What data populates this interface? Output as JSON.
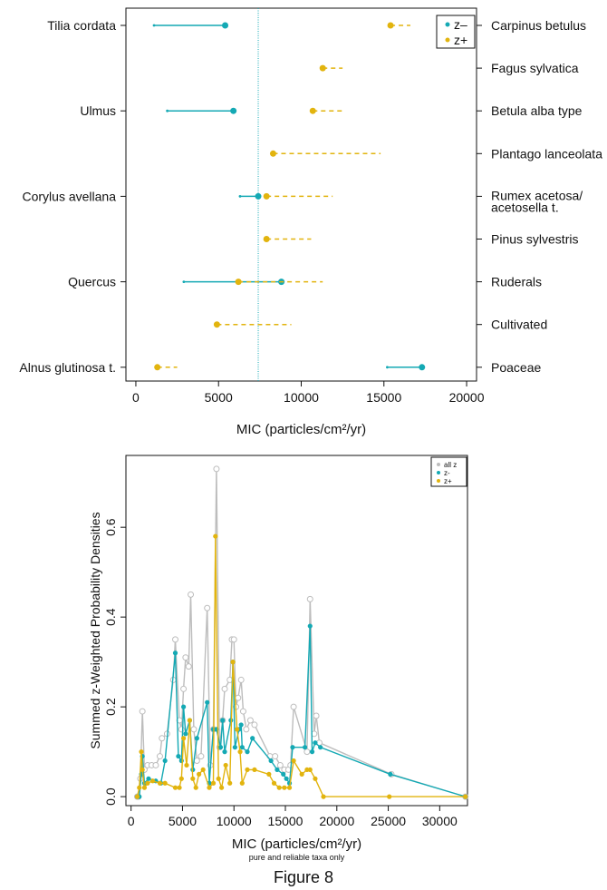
{
  "caption": "Figure 8",
  "colors": {
    "z_minus": "#14a9b4",
    "z_plus": "#e2b40e",
    "all_z": "#bdbdbd",
    "threshold": "#14a9b4"
  },
  "chart_data": [
    {
      "type": "scatter",
      "style": "dumbbell",
      "xlabel": "MIC (particles/cm²/yr)",
      "xlim": [
        -600,
        20600
      ],
      "xticks": [
        0,
        5000,
        10000,
        15000,
        20000
      ],
      "threshold_line": 7400,
      "legend": {
        "placement": "top-right",
        "entries": [
          "z–",
          "z+"
        ]
      },
      "left_labels": [
        "Tilia cordata",
        "Ulmus",
        "Corylus avellana",
        "Quercus",
        "Alnus glutinosa t."
      ],
      "right_labels": [
        "Carpinus betulus",
        "Fagus sylvatica",
        "Betula alba type",
        "Plantago lanceolata",
        "Rumex acetosa/\nacetosella t.",
        "Pinus sylvestris",
        "Ruderals",
        "Cultivated",
        "Poaceae"
      ],
      "taxa": [
        {
          "row": 1,
          "z_minus": {
            "value": 5400,
            "range": [
              1100,
              5400
            ]
          },
          "z_plus": {
            "value": 15400,
            "range": [
              15400,
              16600
            ]
          }
        },
        {
          "row": 2,
          "z_plus": {
            "value": 11300,
            "range": [
              11300,
              12500
            ]
          }
        },
        {
          "row": 3,
          "z_minus": {
            "value": 5900,
            "range": [
              1900,
              5900
            ]
          },
          "z_plus": {
            "value": 10700,
            "range": [
              10700,
              12500
            ]
          }
        },
        {
          "row": 4,
          "z_plus": {
            "value": 8300,
            "range": [
              8300,
              14800
            ]
          }
        },
        {
          "row": 5,
          "z_minus": {
            "value": 7400,
            "range": [
              6300,
              7400
            ]
          },
          "z_plus": {
            "value": 7900,
            "range": [
              7900,
              11900
            ]
          }
        },
        {
          "row": 6,
          "z_plus": {
            "value": 7900,
            "range": [
              7900,
              10600
            ]
          }
        },
        {
          "row": 7,
          "z_minus": {
            "value": 8800,
            "range": [
              2900,
              8800
            ]
          },
          "z_plus": {
            "value": 6200,
            "range": [
              6200,
              11300
            ]
          }
        },
        {
          "row": 8,
          "z_plus": {
            "value": 4900,
            "range": [
              4900,
              9400
            ]
          }
        },
        {
          "row": 9,
          "z_minus": {
            "value": 17300,
            "range": [
              15200,
              17300
            ]
          },
          "z_plus": {
            "value": 1300,
            "range": [
              1300,
              2500
            ]
          }
        }
      ]
    },
    {
      "type": "line",
      "xlabel": "MIC (particles/cm²/yr)",
      "subtitle": "pure and reliable taxa only",
      "ylabel": "Summed z-Weighted Probability Densities",
      "xlim": [
        -500,
        32700
      ],
      "ylim": [
        -0.02,
        0.76
      ],
      "xticks": [
        0,
        5000,
        10000,
        15000,
        20000,
        25000,
        30000
      ],
      "yticks": [
        0.0,
        0.2,
        0.4,
        0.6
      ],
      "legend": {
        "placement": "top-right",
        "entries": [
          "all z",
          "z-",
          "z+"
        ]
      },
      "series": [
        {
          "name": "all z",
          "color_key": "all_z",
          "points": [
            [
              600,
              0.0
            ],
            [
              700,
              0.0
            ],
            [
              900,
              0.04
            ],
            [
              1100,
              0.19
            ],
            [
              1300,
              0.06
            ],
            [
              1600,
              0.07
            ],
            [
              2000,
              0.07
            ],
            [
              2400,
              0.07
            ],
            [
              2800,
              0.09
            ],
            [
              3000,
              0.13
            ],
            [
              3500,
              0.14
            ],
            [
              4100,
              0.26
            ],
            [
              4300,
              0.35
            ],
            [
              4700,
              0.17
            ],
            [
              4900,
              0.15
            ],
            [
              5100,
              0.24
            ],
            [
              5300,
              0.31
            ],
            [
              5600,
              0.29
            ],
            [
              5800,
              0.45
            ],
            [
              6100,
              0.15
            ],
            [
              6400,
              0.08
            ],
            [
              6800,
              0.09
            ],
            [
              7400,
              0.42
            ],
            [
              7700,
              0.07
            ],
            [
              8000,
              0.15
            ],
            [
              8300,
              0.73
            ],
            [
              8600,
              0.11
            ],
            [
              8900,
              0.17
            ],
            [
              9100,
              0.24
            ],
            [
              9600,
              0.26
            ],
            [
              9800,
              0.35
            ],
            [
              10000,
              0.35
            ],
            [
              10200,
              0.2
            ],
            [
              10400,
              0.22
            ],
            [
              10700,
              0.26
            ],
            [
              10900,
              0.19
            ],
            [
              11200,
              0.15
            ],
            [
              11600,
              0.17
            ],
            [
              12000,
              0.16
            ],
            [
              13500,
              0.09
            ],
            [
              14000,
              0.09
            ],
            [
              14500,
              0.07
            ],
            [
              14900,
              0.06
            ],
            [
              15300,
              0.06
            ],
            [
              15500,
              0.07
            ],
            [
              15800,
              0.2
            ],
            [
              17100,
              0.1
            ],
            [
              17400,
              0.44
            ],
            [
              17800,
              0.14
            ],
            [
              18000,
              0.18
            ],
            [
              18300,
              0.12
            ],
            [
              25300,
              0.05
            ],
            [
              32500,
              0.0
            ]
          ]
        },
        {
          "name": "z-",
          "color_key": "z_minus",
          "points": [
            [
              600,
              0.0
            ],
            [
              800,
              0.0
            ],
            [
              1000,
              0.05
            ],
            [
              1100,
              0.09
            ],
            [
              1300,
              0.03
            ],
            [
              1700,
              0.04
            ],
            [
              2400,
              0.035
            ],
            [
              2900,
              0.03
            ],
            [
              3300,
              0.08
            ],
            [
              4300,
              0.32
            ],
            [
              4600,
              0.09
            ],
            [
              4900,
              0.08
            ],
            [
              5100,
              0.2
            ],
            [
              5300,
              0.14
            ],
            [
              5700,
              0.17
            ],
            [
              6000,
              0.06
            ],
            [
              6400,
              0.13
            ],
            [
              7400,
              0.21
            ],
            [
              7600,
              0.03
            ],
            [
              8000,
              0.15
            ],
            [
              8300,
              0.15
            ],
            [
              8700,
              0.11
            ],
            [
              8900,
              0.17
            ],
            [
              9100,
              0.1
            ],
            [
              9700,
              0.17
            ],
            [
              9900,
              0.3
            ],
            [
              10100,
              0.11
            ],
            [
              10500,
              0.15
            ],
            [
              10700,
              0.16
            ],
            [
              10800,
              0.11
            ],
            [
              11300,
              0.1
            ],
            [
              11800,
              0.13
            ],
            [
              13600,
              0.08
            ],
            [
              14200,
              0.06
            ],
            [
              14800,
              0.05
            ],
            [
              15100,
              0.04
            ],
            [
              15400,
              0.03
            ],
            [
              15700,
              0.11
            ],
            [
              16900,
              0.11
            ],
            [
              17400,
              0.38
            ],
            [
              17600,
              0.1
            ],
            [
              17900,
              0.12
            ],
            [
              18400,
              0.11
            ],
            [
              25200,
              0.05
            ],
            [
              32500,
              0.0
            ]
          ]
        },
        {
          "name": "z+",
          "color_key": "z_plus",
          "points": [
            [
              600,
              0.0
            ],
            [
              800,
              0.02
            ],
            [
              1000,
              0.1
            ],
            [
              1100,
              0.06
            ],
            [
              1300,
              0.02
            ],
            [
              1600,
              0.03
            ],
            [
              2100,
              0.035
            ],
            [
              2800,
              0.03
            ],
            [
              3300,
              0.03
            ],
            [
              4300,
              0.02
            ],
            [
              4700,
              0.02
            ],
            [
              4900,
              0.04
            ],
            [
              5100,
              0.13
            ],
            [
              5400,
              0.07
            ],
            [
              5700,
              0.17
            ],
            [
              6000,
              0.04
            ],
            [
              6300,
              0.02
            ],
            [
              6600,
              0.05
            ],
            [
              7000,
              0.06
            ],
            [
              7600,
              0.02
            ],
            [
              8000,
              0.03
            ],
            [
              8200,
              0.58
            ],
            [
              8500,
              0.04
            ],
            [
              8800,
              0.02
            ],
            [
              9200,
              0.07
            ],
            [
              9600,
              0.03
            ],
            [
              9900,
              0.3
            ],
            [
              10300,
              0.15
            ],
            [
              10600,
              0.1
            ],
            [
              10800,
              0.03
            ],
            [
              11300,
              0.06
            ],
            [
              12000,
              0.06
            ],
            [
              13400,
              0.05
            ],
            [
              13900,
              0.03
            ],
            [
              14400,
              0.02
            ],
            [
              14900,
              0.02
            ],
            [
              15400,
              0.02
            ],
            [
              15800,
              0.08
            ],
            [
              16600,
              0.05
            ],
            [
              17100,
              0.06
            ],
            [
              17400,
              0.06
            ],
            [
              17900,
              0.04
            ],
            [
              18700,
              0.0
            ],
            [
              25100,
              0.0
            ],
            [
              32500,
              0.0
            ]
          ]
        }
      ]
    }
  ]
}
